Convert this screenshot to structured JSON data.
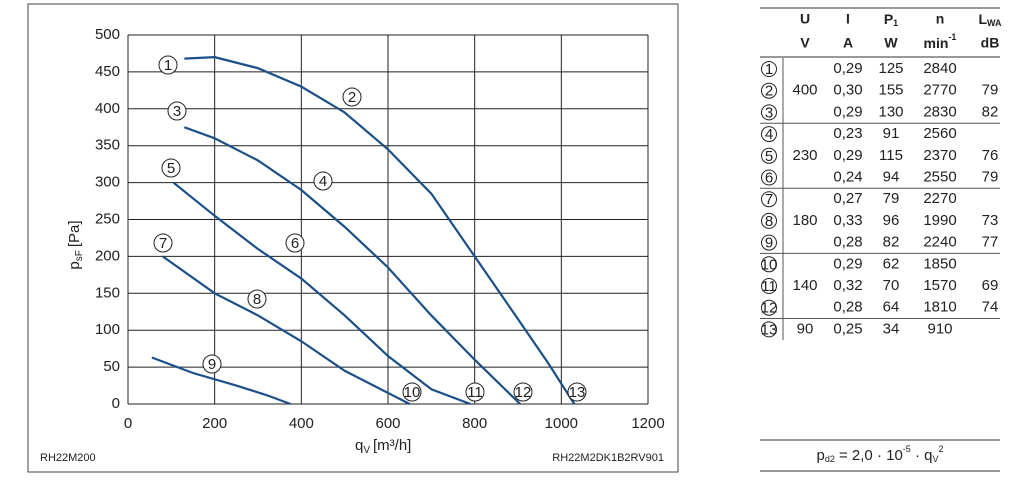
{
  "chart_data": {
    "type": "line",
    "y_label": {
      "main": "p",
      "sub": "sF",
      "unit": "[Pa]"
    },
    "x_label": {
      "main": "q",
      "sub": "V",
      "unit": "[m³/h]"
    },
    "xlim": [
      0,
      1200
    ],
    "xticks": [
      0,
      200,
      400,
      600,
      800,
      1000,
      1200
    ],
    "ylim": [
      0,
      500
    ],
    "yticks": [
      0,
      50,
      100,
      150,
      200,
      250,
      300,
      350,
      400,
      450,
      500
    ],
    "grid": true,
    "color": "#1b4f8a",
    "series": [
      {
        "x": [
          130,
          200,
          300,
          400,
          500,
          600,
          700,
          800,
          900,
          970,
          1030
        ],
        "y": [
          468,
          470,
          455,
          430,
          395,
          345,
          285,
          200,
          115,
          55,
          0
        ]
      },
      {
        "x": [
          130,
          200,
          300,
          400,
          500,
          600,
          700,
          800,
          905
        ],
        "y": [
          375,
          360,
          330,
          290,
          240,
          185,
          120,
          60,
          0
        ]
      },
      {
        "x": [
          105,
          200,
          300,
          400,
          500,
          600,
          700,
          790
        ],
        "y": [
          300,
          255,
          210,
          170,
          120,
          65,
          20,
          0
        ]
      },
      {
        "x": [
          80,
          200,
          300,
          400,
          500,
          600,
          650
        ],
        "y": [
          200,
          150,
          120,
          85,
          45,
          15,
          0
        ]
      },
      {
        "x": [
          55,
          150,
          250,
          320,
          375
        ],
        "y": [
          63,
          42,
          25,
          12,
          0
        ]
      }
    ],
    "annotations": [
      "1",
      "2",
      "3",
      "4",
      "5",
      "6",
      "7",
      "8",
      "9",
      "10",
      "11",
      "12",
      "13"
    ],
    "footer_left": "RH22M200",
    "footer_right": "RH22M2DK1B2RV901"
  },
  "table": {
    "headers": [
      "U",
      "I",
      {
        "main": "P",
        "sub": "1"
      },
      "n",
      {
        "main": "L",
        "sub": "WA"
      }
    ],
    "units": [
      "V",
      "A",
      "W",
      {
        "main": "min",
        "sup": "-1"
      },
      "dB"
    ],
    "rows": [
      [
        "1",
        null,
        "0,29",
        "125",
        "2840",
        null
      ],
      [
        "2",
        "400",
        "0,30",
        "155",
        "2770",
        "79"
      ],
      [
        "3",
        null,
        "0,29",
        "130",
        "2830",
        "82"
      ],
      [
        "4",
        null,
        "0,23",
        "91",
        "2560",
        null
      ],
      [
        "5",
        "230",
        "0,29",
        "115",
        "2370",
        "76"
      ],
      [
        "6",
        null,
        "0,24",
        "94",
        "2550",
        "79"
      ],
      [
        "7",
        null,
        "0,27",
        "79",
        "2270",
        null
      ],
      [
        "8",
        "180",
        "0,33",
        "96",
        "1990",
        "73"
      ],
      [
        "9",
        null,
        "0,28",
        "82",
        "2240",
        "77"
      ],
      [
        "10",
        null,
        "0,29",
        "62",
        "1850",
        null
      ],
      [
        "11",
        "140",
        "0,32",
        "70",
        "1570",
        "69"
      ],
      [
        "12",
        null,
        "0,28",
        "64",
        "1810",
        "74"
      ],
      [
        "13",
        "90",
        "0,25",
        "34",
        "910",
        null
      ]
    ]
  },
  "formula": {
    "p": "p",
    "p_sub": "d2",
    "eq": " = 2,0 · 10",
    "exp": "-5",
    "mid": " · q",
    "q_sub": "V",
    "q_sup": "2"
  }
}
